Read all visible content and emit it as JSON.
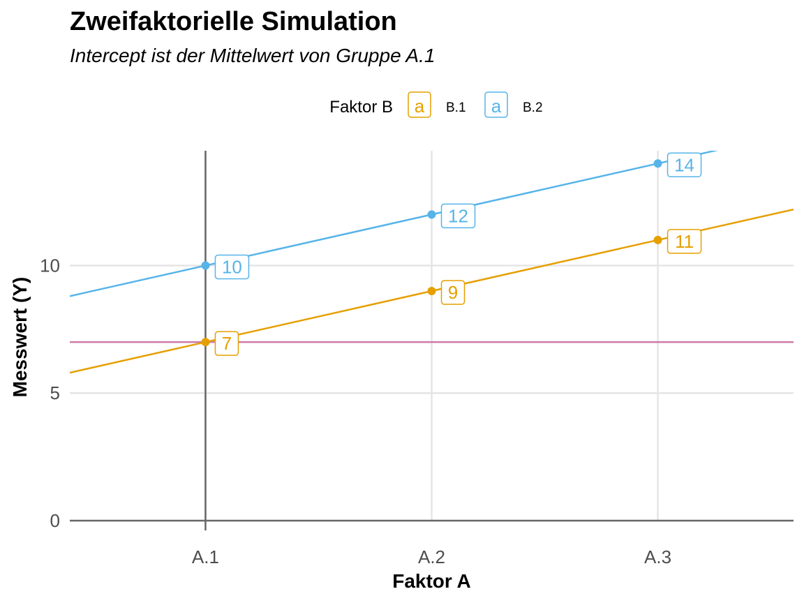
{
  "header": {
    "title": "Zweifaktorielle Simulation",
    "subtitle": "Intercept ist der Mittelwert von Gruppe A.1"
  },
  "chart_data": {
    "type": "line",
    "title": "Zweifaktorielle Simulation",
    "subtitle": "Intercept ist der Mittelwert von Gruppe A.1",
    "xlabel": "Faktor A",
    "ylabel": "Messwert (Y)",
    "categories": [
      "A.1",
      "A.2",
      "A.3"
    ],
    "ylim": [
      0,
      14.5
    ],
    "xlim": [
      0.4,
      3.6
    ],
    "y_ticks": [
      0,
      5,
      10
    ],
    "grid": true,
    "legend": {
      "title": "Faktor B",
      "position": "top",
      "key_glyph": "a"
    },
    "series": [
      {
        "name": "B.1",
        "color": "#E69F00",
        "values": [
          7,
          9,
          11
        ],
        "labels": [
          "7",
          "9",
          "11"
        ]
      },
      {
        "name": "B.2",
        "color": "#56B4E9",
        "values": [
          10,
          12,
          14
        ],
        "labels": [
          "10",
          "12",
          "14"
        ]
      }
    ],
    "reference_lines": {
      "horizontal": {
        "y": 7,
        "color": "#CC79A7"
      },
      "vertical": {
        "x": "A.1",
        "color": "#666666"
      },
      "x_axis_line": {
        "y": 0,
        "color": "#666666"
      }
    }
  }
}
